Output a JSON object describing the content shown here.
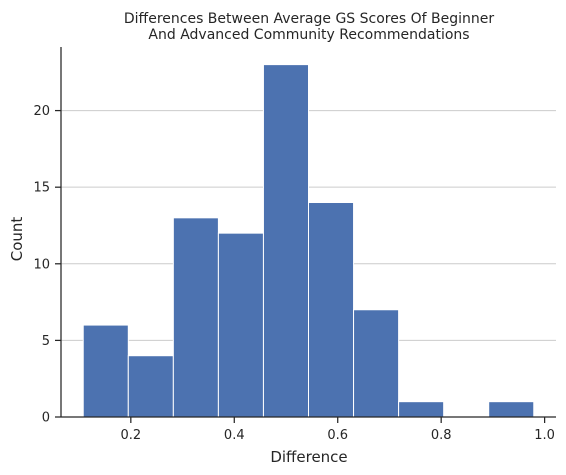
{
  "chart_data": {
    "type": "bar",
    "title_lines": [
      "Differences Between Average GS Scores Of Beginner",
      "And Advanced Community Recommendations"
    ],
    "xlabel": "Difference",
    "ylabel": "Count",
    "bins": [
      {
        "x0": 0.108,
        "x1": 0.1951,
        "count": 6
      },
      {
        "x0": 0.1951,
        "x1": 0.2822,
        "count": 4
      },
      {
        "x0": 0.2822,
        "x1": 0.3693,
        "count": 13
      },
      {
        "x0": 0.3693,
        "x1": 0.4564,
        "count": 12
      },
      {
        "x0": 0.4564,
        "x1": 0.5435,
        "count": 23
      },
      {
        "x0": 0.5435,
        "x1": 0.6306,
        "count": 14
      },
      {
        "x0": 0.6306,
        "x1": 0.7177,
        "count": 7
      },
      {
        "x0": 0.7177,
        "x1": 0.8048,
        "count": 1
      },
      {
        "x0": 0.8048,
        "x1": 0.8919,
        "count": 0
      },
      {
        "x0": 0.8919,
        "x1": 0.979,
        "count": 1
      }
    ],
    "xlim": [
      0.065,
      1.022
    ],
    "ylim": [
      0,
      24.15
    ],
    "xticks": [
      0.2,
      0.4,
      0.6,
      0.8,
      1.0
    ],
    "xtick_labels": [
      "0.2",
      "0.4",
      "0.6",
      "0.8",
      "1.0"
    ],
    "yticks": [
      0,
      5,
      10,
      15,
      20
    ],
    "ytick_labels": [
      "0",
      "5",
      "10",
      "15",
      "20"
    ],
    "grid": "horizontal",
    "bar_color": "#4c72b0",
    "bar_edge_color": "#ffffff",
    "grid_color": "#cccccc",
    "axis_color": "#262626"
  }
}
